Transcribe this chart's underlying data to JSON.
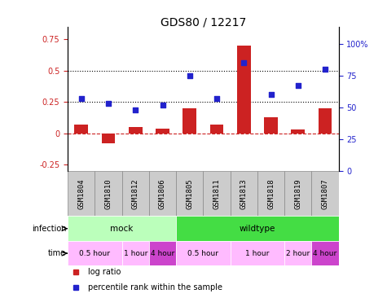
{
  "title": "GDS80 / 12217",
  "samples": [
    "GSM1804",
    "GSM1810",
    "GSM1812",
    "GSM1806",
    "GSM1805",
    "GSM1811",
    "GSM1813",
    "GSM1818",
    "GSM1819",
    "GSM1807"
  ],
  "log_ratio": [
    0.07,
    -0.08,
    0.05,
    0.04,
    0.2,
    0.07,
    0.7,
    0.13,
    0.03,
    0.2
  ],
  "percentile_rank": [
    57,
    53,
    48,
    52,
    75,
    57,
    85,
    60,
    67,
    80
  ],
  "left_yticks": [
    -0.25,
    0,
    0.25,
    0.5,
    0.75
  ],
  "right_yticks": [
    0,
    25,
    50,
    75,
    100
  ],
  "ylim_left": [
    -0.3,
    0.85
  ],
  "ylim_right": [
    0,
    113.33
  ],
  "hlines": [
    0.25,
    0.5
  ],
  "bar_color": "#cc2222",
  "dot_color": "#2222cc",
  "zero_line_color": "#cc2222",
  "infection_groups": [
    {
      "label": "mock",
      "start": 0,
      "end": 4,
      "color": "#bbffbb"
    },
    {
      "label": "wildtype",
      "start": 4,
      "end": 10,
      "color": "#44dd44"
    }
  ],
  "time_groups": [
    {
      "label": "0.5 hour",
      "start": 0,
      "end": 2,
      "color": "#ffbbff"
    },
    {
      "label": "1 hour",
      "start": 2,
      "end": 3,
      "color": "#ffbbff"
    },
    {
      "label": "4 hour",
      "start": 3,
      "end": 4,
      "color": "#cc44cc"
    },
    {
      "label": "0.5 hour",
      "start": 4,
      "end": 6,
      "color": "#ffbbff"
    },
    {
      "label": "1 hour",
      "start": 6,
      "end": 8,
      "color": "#ffbbff"
    },
    {
      "label": "2 hour",
      "start": 8,
      "end": 9,
      "color": "#ffbbff"
    },
    {
      "label": "4 hour",
      "start": 9,
      "end": 10,
      "color": "#cc44cc"
    }
  ],
  "legend_items": [
    {
      "label": "log ratio",
      "color": "#cc2222"
    },
    {
      "label": "percentile rank within the sample",
      "color": "#2222cc"
    }
  ],
  "sample_bg_color": "#cccccc",
  "sample_border_color": "#888888"
}
